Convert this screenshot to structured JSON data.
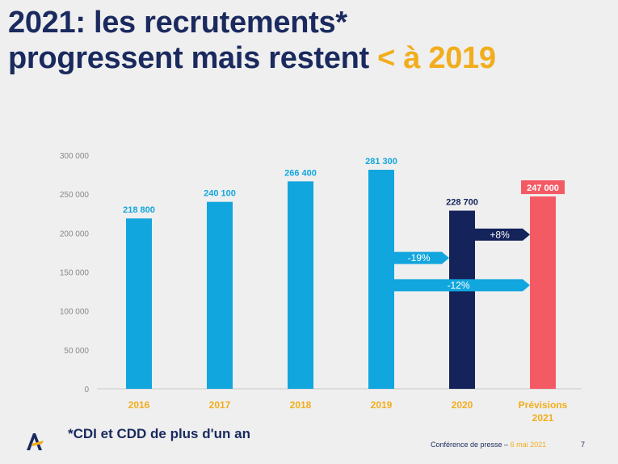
{
  "title": {
    "line1": "2021: les recrutements*",
    "line2_main": "progressent mais restent ",
    "line2_accent": "< à 2019"
  },
  "footnote": "*CDI et CDD de plus d'un an",
  "footer": {
    "text": "Conférence de presse – ",
    "date": "6 mai 2021",
    "page": "7"
  },
  "colors": {
    "title": "#1a2a5e",
    "accent": "#f2ad1c",
    "bar_light": "#12a6de",
    "bar_dark": "#14235a",
    "bar_forecast": "#f45a64"
  },
  "chart_data": {
    "type": "bar",
    "categories": [
      "2016",
      "2017",
      "2018",
      "2019",
      "2020",
      "Prévisions 2021"
    ],
    "values": [
      218800,
      240100,
      266400,
      281300,
      228700,
      247000
    ],
    "data_labels": [
      "218 800",
      "240 100",
      "266 400",
      "281 300",
      "228 700",
      "247 000"
    ],
    "bar_colors": [
      "#12a6de",
      "#12a6de",
      "#12a6de",
      "#12a6de",
      "#14235a",
      "#f45a64"
    ],
    "ylim": [
      0,
      300000
    ],
    "yticks": [
      0,
      50000,
      100000,
      150000,
      200000,
      250000,
      300000
    ],
    "ytick_labels": [
      "0",
      "50 000",
      "100 000",
      "150 000",
      "200 000",
      "250 000",
      "300 000"
    ],
    "title": "",
    "xlabel": "",
    "ylabel": "",
    "annotations": [
      {
        "label": "-19%",
        "from": "2019",
        "to": "2020",
        "y": 168000,
        "color": "#12a6de"
      },
      {
        "label": "-12%",
        "from": "2019",
        "to": "Prévisions 2021",
        "y": 133000,
        "color": "#12a6de"
      },
      {
        "label": "+8%",
        "from": "2020",
        "to": "Prévisions 2021",
        "y": 198000,
        "color": "#14235a"
      }
    ]
  }
}
